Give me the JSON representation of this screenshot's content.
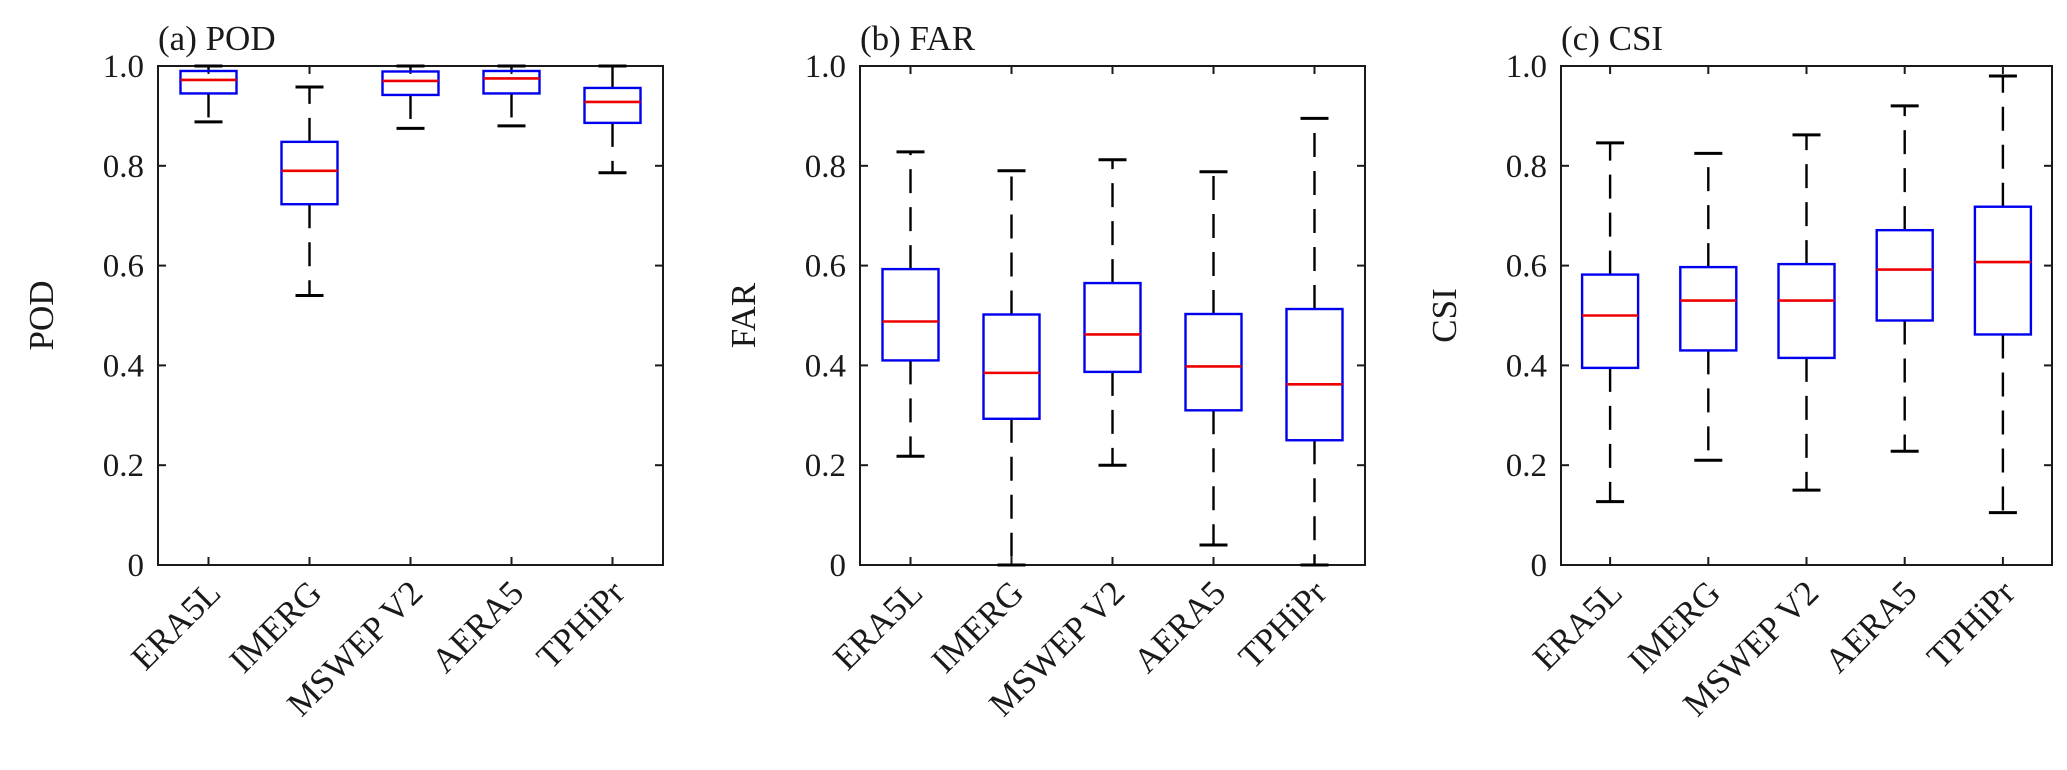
{
  "chart_data": [
    {
      "type": "box",
      "title": "(a) POD",
      "ylabel": "POD",
      "ylim": [
        0,
        1
      ],
      "yticks": [
        "0",
        "0.2",
        "0.4",
        "0.6",
        "0.8",
        "1.0"
      ],
      "categories": [
        "ERA5L",
        "IMERG",
        "MSWEP V2",
        "AERA5",
        "TPHiPr"
      ],
      "boxes": [
        {
          "whisker_low": 0.888,
          "q1": 0.945,
          "median": 0.972,
          "q3": 0.99,
          "whisker_high": 1.0
        },
        {
          "whisker_low": 0.54,
          "q1": 0.723,
          "median": 0.79,
          "q3": 0.848,
          "whisker_high": 0.958
        },
        {
          "whisker_low": 0.875,
          "q1": 0.942,
          "median": 0.97,
          "q3": 0.989,
          "whisker_high": 1.0
        },
        {
          "whisker_low": 0.88,
          "q1": 0.945,
          "median": 0.975,
          "q3": 0.99,
          "whisker_high": 1.0
        },
        {
          "whisker_low": 0.786,
          "q1": 0.886,
          "median": 0.928,
          "q3": 0.956,
          "whisker_high": 1.0
        }
      ]
    },
    {
      "type": "box",
      "title": "(b) FAR",
      "ylabel": "FAR",
      "ylim": [
        0,
        1
      ],
      "yticks": [
        "0",
        "0.2",
        "0.4",
        "0.6",
        "0.8",
        "1.0"
      ],
      "categories": [
        "ERA5L",
        "IMERG",
        "MSWEP V2",
        "AERA5",
        "TPHiPr"
      ],
      "boxes": [
        {
          "whisker_low": 0.218,
          "q1": 0.41,
          "median": 0.488,
          "q3": 0.593,
          "whisker_high": 0.828
        },
        {
          "whisker_low": 0.0,
          "q1": 0.293,
          "median": 0.385,
          "q3": 0.502,
          "whisker_high": 0.79
        },
        {
          "whisker_low": 0.2,
          "q1": 0.387,
          "median": 0.462,
          "q3": 0.565,
          "whisker_high": 0.812
        },
        {
          "whisker_low": 0.04,
          "q1": 0.31,
          "median": 0.398,
          "q3": 0.503,
          "whisker_high": 0.788
        },
        {
          "whisker_low": 0.0,
          "q1": 0.25,
          "median": 0.362,
          "q3": 0.513,
          "whisker_high": 0.895
        }
      ]
    },
    {
      "type": "box",
      "title": "(c) CSI",
      "ylabel": "CSI",
      "ylim": [
        0,
        1
      ],
      "yticks": [
        "0",
        "0.2",
        "0.4",
        "0.6",
        "0.8",
        "1.0"
      ],
      "categories": [
        "ERA5L",
        "IMERG",
        "MSWEP V2",
        "AERA5",
        "TPHiPr"
      ],
      "boxes": [
        {
          "whisker_low": 0.127,
          "q1": 0.395,
          "median": 0.5,
          "q3": 0.582,
          "whisker_high": 0.846
        },
        {
          "whisker_low": 0.21,
          "q1": 0.43,
          "median": 0.53,
          "q3": 0.597,
          "whisker_high": 0.825
        },
        {
          "whisker_low": 0.15,
          "q1": 0.415,
          "median": 0.53,
          "q3": 0.603,
          "whisker_high": 0.862
        },
        {
          "whisker_low": 0.228,
          "q1": 0.49,
          "median": 0.592,
          "q3": 0.671,
          "whisker_high": 0.92
        },
        {
          "whisker_low": 0.105,
          "q1": 0.462,
          "median": 0.607,
          "q3": 0.718,
          "whisker_high": 0.98
        }
      ]
    }
  ],
  "colors": {
    "box": "#0000ee",
    "median": "#ee0000",
    "whisker": "#000000",
    "frame": "#1a1a1a"
  }
}
